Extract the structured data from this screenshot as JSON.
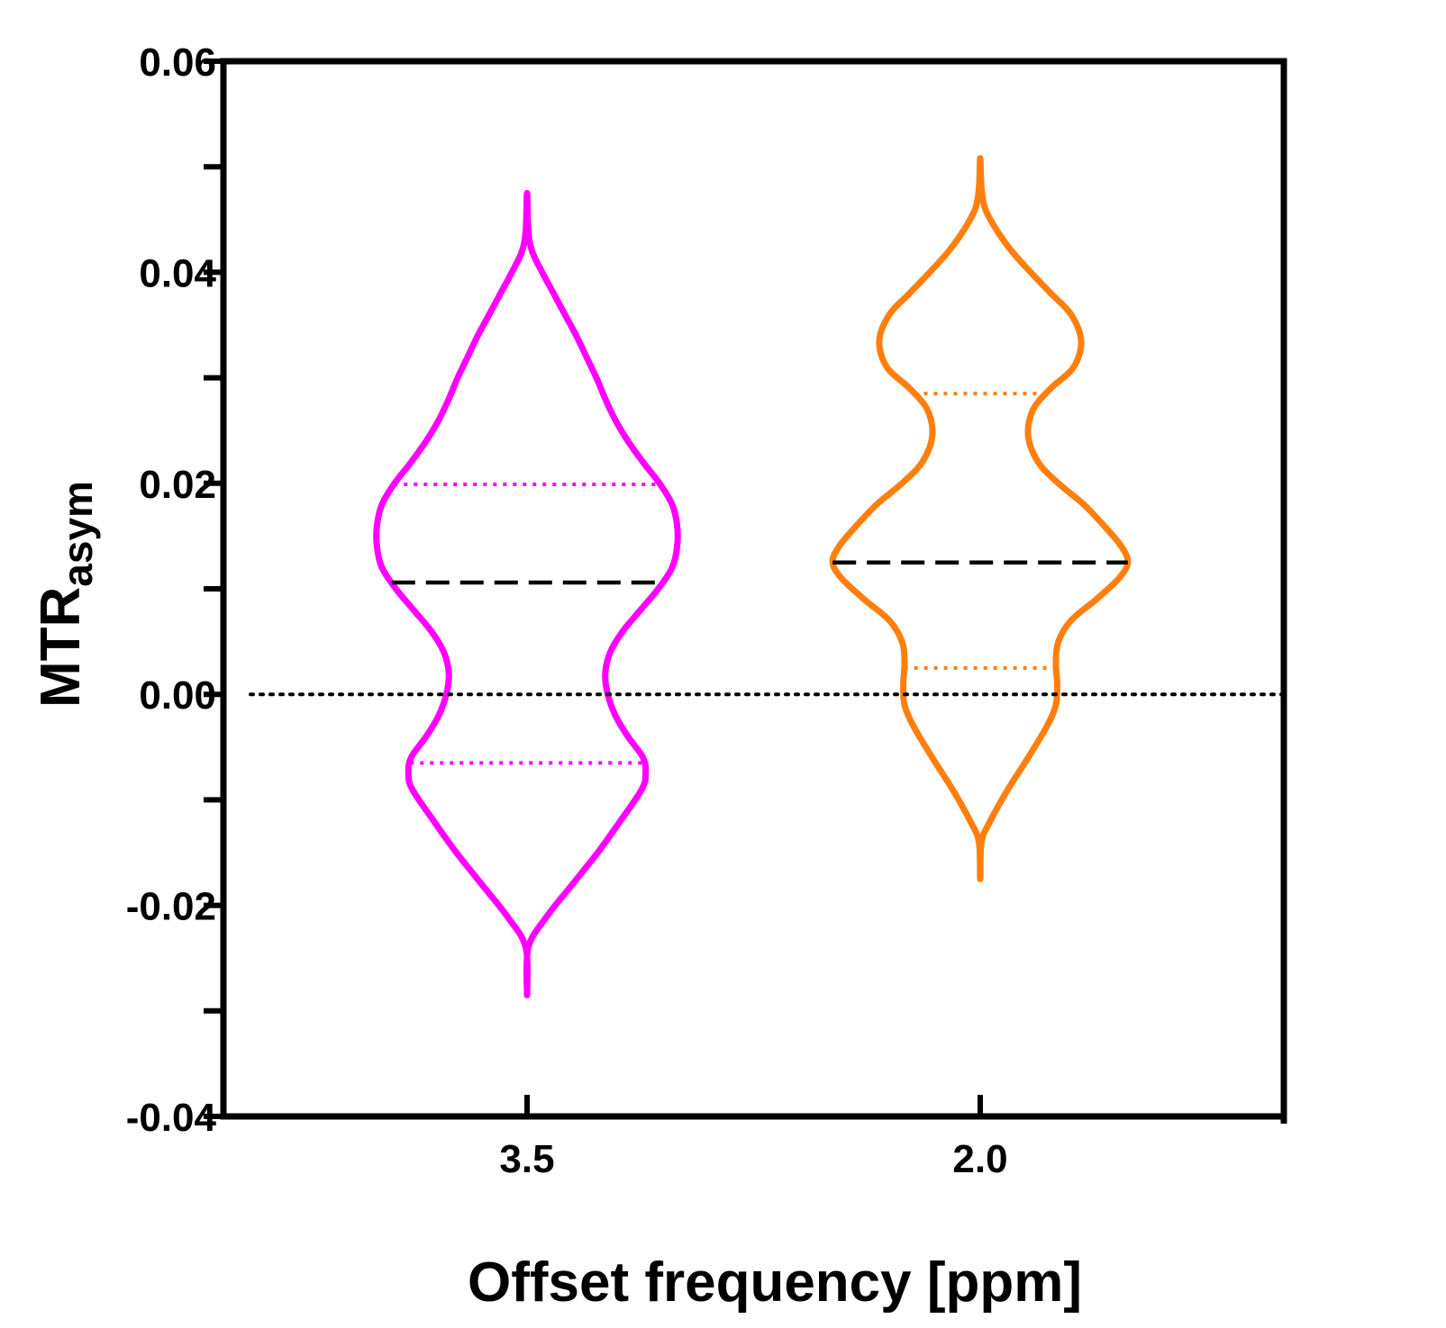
{
  "chart_data": {
    "type": "violin",
    "title": "",
    "xlabel": "Offset frequency [ppm]",
    "ylabel": {
      "main": "MTR",
      "subscript": "asym"
    },
    "ylim": [
      -0.04,
      0.06
    ],
    "yticks": [
      -0.04,
      -0.02,
      0.0,
      0.02,
      0.04,
      0.06
    ],
    "ytick_labels": [
      "-0.04",
      "-0.02",
      "0.00",
      "0.02",
      "0.04",
      "0.06"
    ],
    "yminor_ticks": [
      -0.03,
      -0.01,
      0.01,
      0.03,
      0.05
    ],
    "categories": [
      "3.5",
      "2.0"
    ],
    "reference_line": {
      "y": 0.0,
      "style": "dotted",
      "color": "#000000"
    },
    "series": [
      {
        "name": "3.5",
        "color": "#ff00ff",
        "min": -0.0285,
        "max": 0.0475,
        "median": 0.0106,
        "q1": -0.0065,
        "q3": 0.0199,
        "profile": [
          [
            -0.0285,
            0.0
          ],
          [
            -0.024,
            0.01
          ],
          [
            -0.021,
            0.16
          ],
          [
            -0.018,
            0.36
          ],
          [
            -0.015,
            0.56
          ],
          [
            -0.012,
            0.74
          ],
          [
            -0.009,
            0.91
          ],
          [
            -0.0075,
            0.94
          ],
          [
            -0.006,
            0.92
          ],
          [
            -0.004,
            0.8
          ],
          [
            -0.002,
            0.7
          ],
          [
            0.0,
            0.64
          ],
          [
            0.002,
            0.62
          ],
          [
            0.004,
            0.66
          ],
          [
            0.006,
            0.76
          ],
          [
            0.008,
            0.9
          ],
          [
            0.01,
            1.04
          ],
          [
            0.012,
            1.15
          ],
          [
            0.014,
            1.19
          ],
          [
            0.016,
            1.19
          ],
          [
            0.018,
            1.15
          ],
          [
            0.02,
            1.05
          ],
          [
            0.022,
            0.92
          ],
          [
            0.024,
            0.8
          ],
          [
            0.026,
            0.7
          ],
          [
            0.028,
            0.62
          ],
          [
            0.03,
            0.55
          ],
          [
            0.032,
            0.47
          ],
          [
            0.034,
            0.39
          ],
          [
            0.036,
            0.3
          ],
          [
            0.038,
            0.21
          ],
          [
            0.04,
            0.12
          ],
          [
            0.042,
            0.04
          ],
          [
            0.044,
            0.01
          ],
          [
            0.0475,
            0.0
          ]
        ]
      },
      {
        "name": "2.0",
        "color": "#ff7f0e",
        "min": -0.0175,
        "max": 0.0508,
        "median": 0.0125,
        "q1": 0.0025,
        "q3": 0.0285,
        "profile": [
          [
            -0.0175,
            0.0
          ],
          [
            -0.014,
            0.01
          ],
          [
            -0.012,
            0.08
          ],
          [
            -0.009,
            0.22
          ],
          [
            -0.006,
            0.38
          ],
          [
            -0.003,
            0.53
          ],
          [
            -0.001,
            0.6
          ],
          [
            0.001,
            0.61
          ],
          [
            0.003,
            0.6
          ],
          [
            0.005,
            0.62
          ],
          [
            0.007,
            0.72
          ],
          [
            0.009,
            0.92
          ],
          [
            0.011,
            1.1
          ],
          [
            0.0125,
            1.17
          ],
          [
            0.014,
            1.12
          ],
          [
            0.016,
            0.98
          ],
          [
            0.018,
            0.82
          ],
          [
            0.02,
            0.62
          ],
          [
            0.022,
            0.46
          ],
          [
            0.0245,
            0.38
          ],
          [
            0.027,
            0.42
          ],
          [
            0.029,
            0.56
          ],
          [
            0.031,
            0.74
          ],
          [
            0.0335,
            0.8
          ],
          [
            0.036,
            0.72
          ],
          [
            0.038,
            0.56
          ],
          [
            0.04,
            0.4
          ],
          [
            0.042,
            0.25
          ],
          [
            0.044,
            0.13
          ],
          [
            0.046,
            0.04
          ],
          [
            0.048,
            0.01
          ],
          [
            0.0508,
            0.0
          ]
        ]
      }
    ]
  }
}
